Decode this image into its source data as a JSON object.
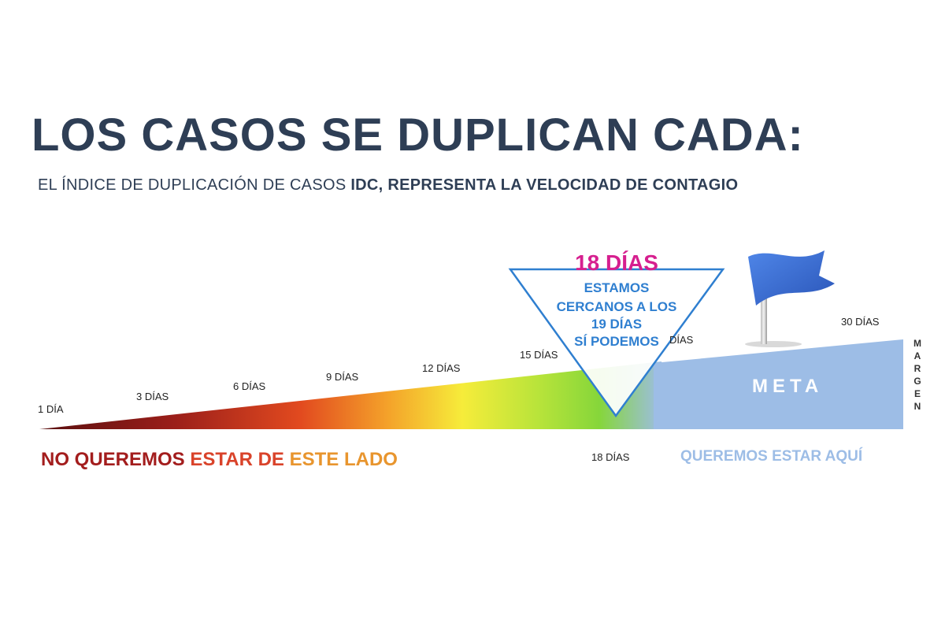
{
  "title": "LOS CASOS SE DUPLICAN CADA:",
  "subtitle": {
    "part1": "EL ÍNDICE DE DUPLICACIÓN DE CASOS ",
    "bold": "IDC, REPRESENTA LA VELOCIDAD DE CONTAGIO"
  },
  "scale_labels": [
    "1 DÍA",
    "3 DÍAS",
    "6 DÍAS",
    "9 DÍAS",
    "12 DÍAS",
    "15 DÍAS",
    "DÍAS",
    "30 DÍAS"
  ],
  "callout": {
    "headline": "18 DÍAS",
    "line1": "ESTAMOS",
    "line2": "CERCANOS A LOS",
    "line3": "19 DÍAS",
    "line4": "SÍ PODEMOS"
  },
  "goal_label": "META",
  "margin_label": "MARGEN",
  "marker_label": "18 DÍAS",
  "bottom_left": {
    "part1": "NO QUEREMOS ",
    "part2": "ESTAR DE ",
    "part3": "ESTE LADO"
  },
  "bottom_right": "QUEREMOS ESTAR AQUÍ",
  "colors": {
    "title": "#2e3e55",
    "callout_headline": "#d61f8f",
    "callout_text": "#2f7fd0",
    "goal_fill": "#9dbde6",
    "flag": "#3b6fd6",
    "bottom_red": "#a31d1d",
    "bottom_orange": "#d9432a",
    "bottom_amber": "#e8952e"
  }
}
